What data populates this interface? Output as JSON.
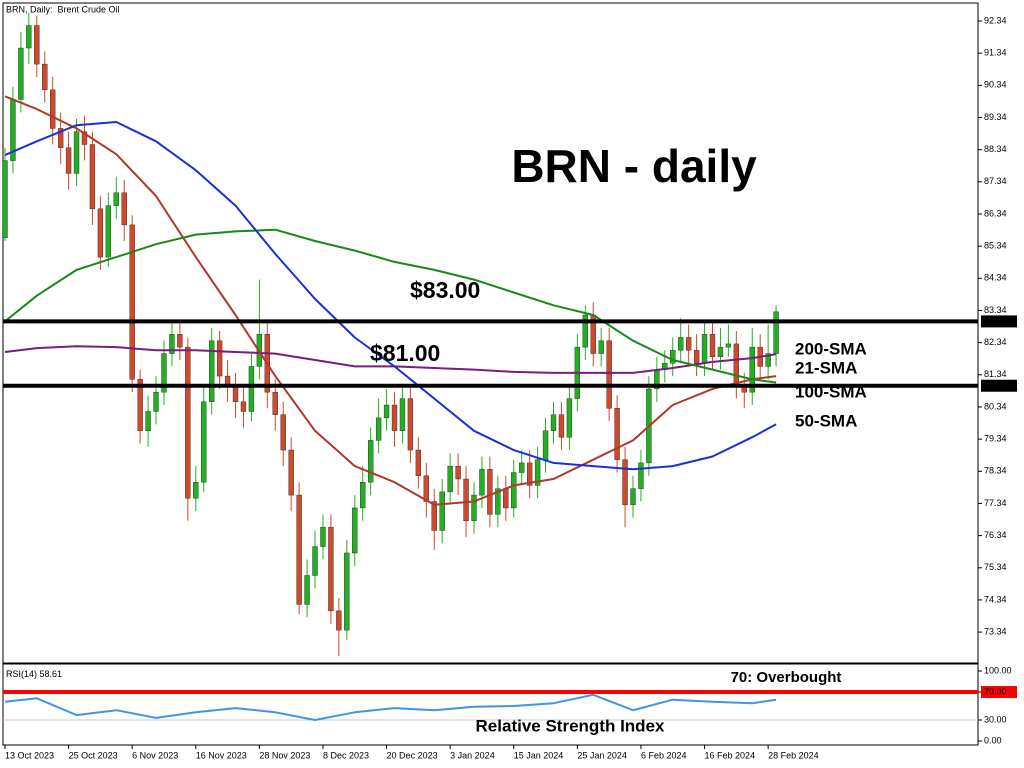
{
  "chart_data": {
    "type": "candlestick",
    "header": "BRN, Daily:  Brent Crude Oil",
    "title": "BRN - daily",
    "up_color": "#22b022",
    "down_color": "#cf4a2c",
    "xlim": [
      -0.25,
      122.4
    ],
    "xticks": [
      {
        "value": 0,
        "label": "13 Oct 2023"
      },
      {
        "value": 8,
        "label": "25 Oct 2023"
      },
      {
        "value": 16,
        "label": "6 Nov 2023"
      },
      {
        "value": 24,
        "label": "16 Nov 2023"
      },
      {
        "value": 32,
        "label": "28 Nov 2023"
      },
      {
        "value": 40,
        "label": "8 Dec 2023"
      },
      {
        "value": 48,
        "label": "20 Dec 2023"
      },
      {
        "value": 56,
        "label": "3 Jan 2024"
      },
      {
        "value": 64,
        "label": "15 Jan 2024"
      },
      {
        "value": 72,
        "label": "25 Jan 2024"
      },
      {
        "value": 80,
        "label": "6 Feb 2024"
      },
      {
        "value": 88,
        "label": "16 Feb 2024"
      },
      {
        "value": 96,
        "label": "28 Feb 2024"
      }
    ],
    "ylim": [
      72.41,
      92.9
    ],
    "yticks": [
      92.34,
      91.34,
      90.34,
      89.34,
      88.34,
      87.34,
      86.34,
      85.34,
      84.34,
      83.34,
      82.34,
      81.34,
      80.34,
      79.34,
      78.34,
      77.34,
      76.34,
      75.34,
      74.34,
      73.34
    ],
    "levels": [
      {
        "value": 83,
        "label": "83.00",
        "annotation": "$83.00",
        "color": "#000000"
      },
      {
        "value": 81,
        "label": "81.00",
        "annotation": "$81.00",
        "color": "#000000"
      }
    ],
    "ohlc": [
      [
        85.6,
        88.4,
        85.5,
        88.0
      ],
      [
        88.0,
        90.3,
        87.6,
        89.9
      ],
      [
        89.9,
        92.0,
        89.5,
        91.5
      ],
      [
        91.5,
        92.6,
        91.0,
        92.2
      ],
      [
        92.2,
        92.5,
        90.6,
        91.0
      ],
      [
        91.0,
        91.4,
        89.8,
        90.2
      ],
      [
        90.2,
        90.6,
        88.5,
        89.0
      ],
      [
        89.0,
        89.5,
        87.9,
        88.4
      ],
      [
        88.4,
        88.9,
        87.1,
        87.6
      ],
      [
        87.6,
        89.3,
        87.2,
        88.9
      ],
      [
        88.9,
        89.4,
        88.0,
        88.5
      ],
      [
        88.5,
        88.9,
        86.0,
        86.5
      ],
      [
        86.5,
        86.9,
        84.6,
        85.0
      ],
      [
        85.0,
        87.0,
        84.7,
        86.6
      ],
      [
        86.6,
        87.5,
        86.2,
        87.0
      ],
      [
        87.0,
        87.4,
        85.5,
        86.0
      ],
      [
        86.0,
        86.3,
        80.8,
        81.2
      ],
      [
        81.2,
        81.5,
        79.2,
        79.6
      ],
      [
        79.6,
        80.7,
        79.1,
        80.2
      ],
      [
        80.2,
        81.3,
        79.8,
        80.8
      ],
      [
        80.8,
        82.4,
        80.4,
        82.0
      ],
      [
        82.0,
        83.0,
        81.6,
        82.6
      ],
      [
        82.6,
        83.0,
        81.8,
        82.2
      ],
      [
        82.2,
        82.5,
        76.8,
        77.5
      ],
      [
        77.5,
        78.5,
        77.1,
        78.0
      ],
      [
        78.0,
        81.0,
        77.7,
        80.5
      ],
      [
        80.5,
        82.8,
        80.1,
        82.4
      ],
      [
        82.4,
        82.7,
        80.9,
        81.3
      ],
      [
        81.3,
        81.8,
        80.5,
        81.0
      ],
      [
        81.0,
        81.4,
        80.0,
        80.5
      ],
      [
        80.5,
        81.0,
        79.7,
        80.2
      ],
      [
        80.2,
        82.0,
        79.9,
        81.6
      ],
      [
        81.6,
        84.3,
        81.2,
        82.6
      ],
      [
        82.6,
        83.0,
        80.3,
        80.8
      ],
      [
        80.8,
        81.2,
        79.6,
        80.1
      ],
      [
        80.1,
        80.5,
        78.5,
        79.0
      ],
      [
        79.0,
        79.4,
        77.1,
        77.6
      ],
      [
        77.6,
        78.0,
        73.9,
        74.2
      ],
      [
        74.2,
        75.6,
        73.8,
        75.1
      ],
      [
        75.1,
        76.5,
        74.7,
        76.0
      ],
      [
        76.0,
        77.0,
        75.6,
        76.6
      ],
      [
        76.6,
        77.0,
        73.6,
        74.0
      ],
      [
        74.0,
        74.4,
        72.6,
        73.4
      ],
      [
        73.4,
        76.2,
        73.1,
        75.8
      ],
      [
        75.8,
        77.6,
        75.4,
        77.2
      ],
      [
        77.2,
        78.5,
        76.8,
        78.0
      ],
      [
        78.0,
        79.7,
        77.6,
        79.3
      ],
      [
        79.3,
        80.6,
        78.9,
        80.0
      ],
      [
        80.0,
        80.9,
        79.6,
        80.4
      ],
      [
        80.4,
        80.8,
        79.1,
        79.6
      ],
      [
        79.6,
        81.0,
        79.2,
        80.6
      ],
      [
        80.6,
        81.0,
        78.6,
        79.0
      ],
      [
        79.0,
        79.4,
        77.8,
        78.2
      ],
      [
        78.2,
        78.6,
        76.9,
        77.4
      ],
      [
        77.4,
        77.8,
        75.9,
        76.5
      ],
      [
        76.5,
        78.1,
        76.1,
        77.7
      ],
      [
        77.7,
        78.9,
        77.3,
        78.5
      ],
      [
        78.5,
        78.9,
        77.6,
        78.1
      ],
      [
        78.1,
        78.5,
        76.3,
        76.8
      ],
      [
        76.8,
        78.0,
        76.4,
        77.6
      ],
      [
        77.6,
        78.8,
        77.2,
        78.4
      ],
      [
        78.4,
        78.8,
        76.6,
        77.0
      ],
      [
        77.0,
        78.2,
        76.6,
        77.8
      ],
      [
        77.8,
        78.2,
        76.8,
        77.2
      ],
      [
        77.2,
        78.7,
        76.9,
        78.3
      ],
      [
        78.3,
        79.0,
        77.9,
        78.6
      ],
      [
        78.6,
        79.0,
        77.5,
        77.9
      ],
      [
        77.9,
        79.1,
        77.5,
        78.7
      ],
      [
        78.7,
        80.0,
        78.3,
        79.6
      ],
      [
        79.6,
        80.5,
        79.2,
        80.1
      ],
      [
        80.1,
        80.5,
        79.0,
        79.4
      ],
      [
        79.4,
        81.0,
        79.0,
        80.6
      ],
      [
        80.6,
        82.6,
        80.2,
        82.2
      ],
      [
        82.2,
        83.5,
        81.8,
        83.2
      ],
      [
        83.2,
        83.6,
        81.6,
        82.0
      ],
      [
        82.0,
        82.8,
        81.6,
        82.4
      ],
      [
        82.4,
        82.8,
        79.9,
        80.3
      ],
      [
        80.3,
        80.7,
        78.3,
        78.7
      ],
      [
        78.7,
        79.1,
        76.6,
        77.3
      ],
      [
        77.3,
        78.2,
        76.9,
        77.8
      ],
      [
        77.8,
        79.0,
        77.4,
        78.6
      ],
      [
        78.6,
        81.3,
        78.2,
        80.9
      ],
      [
        80.9,
        81.9,
        80.5,
        81.5
      ],
      [
        81.5,
        82.1,
        81.1,
        81.7
      ],
      [
        81.7,
        82.5,
        81.3,
        82.1
      ],
      [
        82.1,
        83.1,
        81.7,
        82.5
      ],
      [
        82.5,
        82.9,
        81.7,
        82.1
      ],
      [
        82.1,
        82.6,
        81.3,
        81.7
      ],
      [
        81.7,
        83.0,
        81.3,
        82.6
      ],
      [
        82.6,
        83.0,
        81.5,
        81.9
      ],
      [
        81.9,
        82.8,
        81.5,
        82.2
      ],
      [
        82.2,
        82.9,
        81.9,
        82.3
      ],
      [
        82.3,
        82.7,
        80.6,
        81.0
      ],
      [
        81.0,
        81.4,
        80.3,
        80.8
      ],
      [
        80.8,
        82.8,
        80.4,
        82.2
      ],
      [
        82.2,
        82.6,
        81.2,
        81.6
      ],
      [
        81.6,
        82.9,
        81.2,
        82.0
      ],
      [
        82.0,
        83.5,
        81.6,
        83.3
      ]
    ],
    "series": [
      {
        "name": "200-SMA",
        "color": "#7d1a82",
        "x": [
          0,
          4,
          9,
          14,
          19,
          24,
          29,
          34,
          39,
          44,
          49,
          54,
          59,
          64,
          69,
          74,
          79,
          84,
          89,
          94,
          97
        ],
        "values": [
          82.05,
          82.17,
          82.23,
          82.2,
          82.1,
          82.1,
          82.05,
          82.0,
          81.8,
          81.6,
          81.6,
          81.55,
          81.5,
          81.43,
          81.4,
          81.4,
          81.4,
          81.55,
          81.74,
          81.86,
          81.98
        ]
      },
      {
        "name": "21-SMA",
        "color": "#b0382a",
        "x": [
          0,
          4,
          9,
          14,
          19,
          24,
          29,
          34,
          39,
          44,
          49,
          54,
          59,
          64,
          69,
          74,
          79,
          84,
          89,
          94,
          97
        ],
        "values": [
          90.0,
          89.6,
          89.0,
          88.2,
          86.9,
          85.0,
          83.2,
          81.3,
          79.6,
          78.5,
          78.0,
          77.3,
          77.4,
          77.9,
          78.1,
          78.7,
          79.3,
          80.4,
          80.9,
          81.2,
          81.3
        ]
      },
      {
        "name": "100-SMA",
        "color": "#168a16",
        "x": [
          0,
          4,
          9,
          14,
          19,
          24,
          29,
          34,
          39,
          44,
          49,
          54,
          59,
          64,
          69,
          74,
          79,
          84,
          89,
          94,
          97
        ],
        "values": [
          83.0,
          83.8,
          84.6,
          85.0,
          85.4,
          85.7,
          85.8,
          85.85,
          85.5,
          85.2,
          84.85,
          84.6,
          84.3,
          83.9,
          83.5,
          83.2,
          82.4,
          81.8,
          81.5,
          81.2,
          81.1
        ]
      },
      {
        "name": "50-SMA",
        "color": "#1c2fd4",
        "x": [
          0,
          4,
          9,
          14,
          19,
          24,
          29,
          34,
          39,
          44,
          49,
          54,
          59,
          64,
          69,
          74,
          79,
          84,
          89,
          94,
          97
        ],
        "values": [
          88.17,
          88.6,
          89.1,
          89.2,
          88.6,
          87.7,
          86.6,
          85.1,
          83.7,
          82.5,
          81.6,
          80.6,
          79.6,
          79.0,
          78.6,
          78.5,
          78.4,
          78.5,
          78.8,
          79.4,
          79.8
        ]
      }
    ],
    "rsi": {
      "type": "line",
      "name": "RSI(14)",
      "last": 58.61,
      "title": "Relative Strength Index",
      "color": "#3d95e6",
      "ylim": [
        -5.7,
        108.6
      ],
      "yticks": [
        {
          "value": 100,
          "label": "100.00"
        },
        {
          "value": 70,
          "label": "70.00"
        },
        {
          "value": 30,
          "label": "30.00"
        },
        {
          "value": 0,
          "label": "0.00"
        }
      ],
      "levels": [
        {
          "value": 70,
          "annotation": "70: Overbought",
          "color": "#ff0000"
        },
        {
          "value": 30,
          "color": "#c8c8c8"
        }
      ],
      "x": [
        0,
        4,
        9,
        14,
        19,
        24,
        29,
        34,
        39,
        44,
        49,
        54,
        59,
        64,
        69,
        74,
        79,
        84,
        89,
        94,
        97
      ],
      "values": [
        56,
        61,
        37,
        44,
        33,
        41,
        47,
        41,
        30,
        41,
        47,
        44,
        49,
        50,
        54,
        66,
        44,
        59,
        56,
        54,
        59
      ]
    }
  }
}
